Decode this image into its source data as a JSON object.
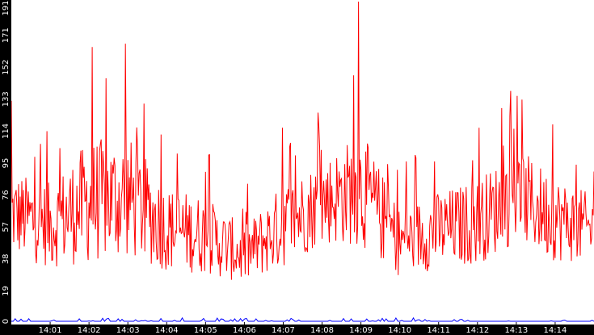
{
  "chart_data": {
    "type": "line",
    "title": "",
    "xlabel": "",
    "ylabel": "",
    "ylim": [
      0,
      191
    ],
    "grid": false,
    "legend": "none",
    "y_ticks": [
      0,
      19,
      38,
      57,
      76,
      95,
      114,
      133,
      152,
      171,
      191
    ],
    "x_ticks": [
      "14:01",
      "14:02",
      "14:03",
      "14:04",
      "14:05",
      "14:06",
      "14:07",
      "14:08",
      "14:09",
      "14:10",
      "14:11",
      "14:12",
      "14:13",
      "14:14"
    ],
    "x_range_minutes": [
      0.0,
      15.0
    ],
    "x_tick_minutes": [
      1,
      2,
      3,
      4,
      5,
      6,
      7,
      8,
      9,
      10,
      11,
      12,
      13,
      14
    ],
    "series": [
      {
        "color": "#ff0000",
        "minute_profile": [
          {
            "minute": 0.0,
            "mean": 65,
            "amp": 22,
            "peak": 132
          },
          {
            "minute": 1.0,
            "mean": 58,
            "amp": 22,
            "peak": 114
          },
          {
            "minute": 2.0,
            "mean": 72,
            "amp": 32,
            "peak": 164
          },
          {
            "minute": 3.0,
            "mean": 75,
            "amp": 32,
            "peak": 166
          },
          {
            "minute": 4.0,
            "mean": 56,
            "amp": 22,
            "peak": 112
          },
          {
            "minute": 5.0,
            "mean": 52,
            "amp": 20,
            "peak": 100
          },
          {
            "minute": 6.0,
            "mean": 40,
            "amp": 15,
            "peak": 66
          },
          {
            "minute": 7.0,
            "mean": 58,
            "amp": 22,
            "peak": 116
          },
          {
            "minute": 8.0,
            "mean": 72,
            "amp": 22,
            "peak": 125
          },
          {
            "minute": 9.0,
            "mean": 80,
            "amp": 30,
            "peak": 191
          },
          {
            "minute": 10.0,
            "mean": 48,
            "amp": 18,
            "peak": 96
          },
          {
            "minute": 11.0,
            "mean": 55,
            "amp": 20,
            "peak": 96
          },
          {
            "minute": 12.0,
            "mean": 60,
            "amp": 22,
            "peak": 116
          },
          {
            "minute": 13.0,
            "mean": 76,
            "amp": 25,
            "peak": 135
          },
          {
            "minute": 14.0,
            "mean": 62,
            "amp": 22,
            "peak": 118
          },
          {
            "minute": 15.0,
            "mean": 55,
            "amp": 18,
            "peak": 90
          }
        ]
      },
      {
        "color": "#0000ff",
        "baseline": 0,
        "blip_max": 2
      }
    ]
  }
}
